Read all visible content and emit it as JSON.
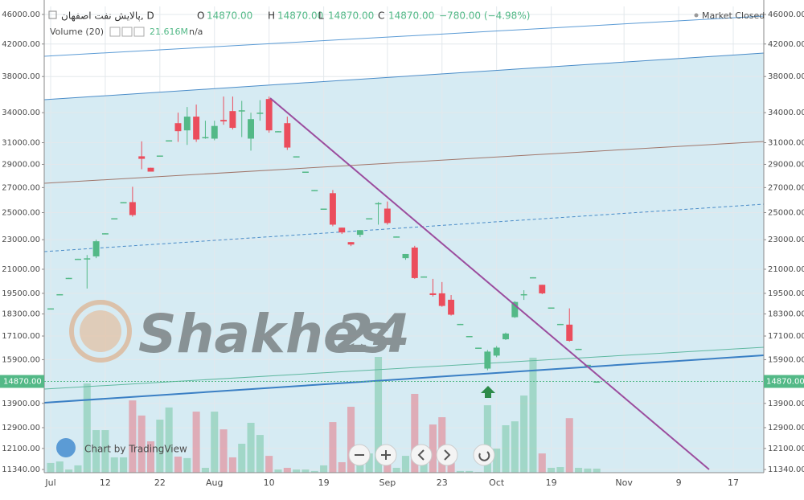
{
  "chart_data": {
    "type": "candlestick",
    "title": "پالایش نفت اصفهان, D",
    "ohlc_legend": [
      {
        "key": "O",
        "value": "14870.00"
      },
      {
        "key": "H",
        "value": "14870.00"
      },
      {
        "key": "L",
        "value": "14870.00"
      },
      {
        "key": "C",
        "value": "14870.00"
      }
    ],
    "change": "−780.00 (−4.98%)",
    "status": "Market Closed",
    "volume_name": "Volume (20)",
    "volume_last_label": "21.616M",
    "volume_na": "n/a",
    "watermark": [
      "Shakhes",
      "24"
    ],
    "credit": "Chart by TradingView",
    "last_price": 14870,
    "last_price_label": "14870.00",
    "log": true,
    "grid": true,
    "up_color": "#53b987",
    "down_color": "#eb4d5c",
    "categories": [
      "Jul",
      null,
      null,
      null,
      null,
      null,
      "12",
      null,
      null,
      null,
      null,
      null,
      "22",
      null,
      null,
      null,
      null,
      null,
      "Aug",
      null,
      null,
      null,
      null,
      null,
      "10",
      null,
      null,
      null,
      null,
      null,
      "19",
      null,
      null,
      null,
      null,
      null,
      null,
      "Sep",
      null,
      null,
      null,
      null,
      null,
      "23",
      null,
      null,
      null,
      null,
      null,
      "Oct",
      null,
      null,
      null,
      null,
      null,
      "19",
      null,
      null,
      null,
      null,
      null,
      null,
      null,
      "Nov",
      null,
      null,
      null,
      null,
      null,
      "9",
      null,
      null,
      null,
      null,
      null,
      "17"
    ],
    "open": [
      18620,
      19450,
      20450,
      21690,
      21720,
      21850,
      23460,
      24570,
      25820,
      25820,
      29730,
      28700,
      29800,
      31230,
      32920,
      32200,
      33590,
      31540,
      31390,
      33250,
      34170,
      34250,
      31390,
      34000,
      35460,
      32120,
      32920,
      29730,
      28360,
      26800,
      25310,
      26540,
      23870,
      22830,
      23350,
      24570,
      25740,
      25310,
      23230,
      21730,
      22450,
      20540,
      19500,
      19500,
      19120,
      17750,
      17100,
      16500,
      15470,
      16100,
      16930,
      18120,
      19450,
      20490,
      20020,
      18670,
      17750,
      17710,
      16440,
      15650,
      14870,
      null,
      null,
      null,
      null,
      null,
      null,
      null,
      null,
      null,
      null,
      null,
      null,
      null,
      null,
      null
    ],
    "high": [
      18620,
      19450,
      20450,
      21690,
      21940,
      23000,
      23460,
      24570,
      25820,
      27070,
      31130,
      28700,
      29800,
      31230,
      34000,
      34600,
      34860,
      33170,
      33170,
      35730,
      35730,
      35260,
      34000,
      35340,
      35730,
      32120,
      33590,
      29730,
      28360,
      26800,
      25310,
      26800,
      23870,
      22830,
      23690,
      24570,
      25820,
      25870,
      23230,
      22010,
      22570,
      20540,
      20390,
      20190,
      19400,
      17750,
      17100,
      16500,
      16380,
      16580,
      17280,
      19040,
      19690,
      20490,
      20020,
      18670,
      17750,
      18620,
      16440,
      15650,
      14870,
      null,
      null,
      null,
      null,
      null,
      null,
      null,
      null,
      null,
      null,
      null,
      null,
      null,
      null,
      null
    ],
    "low": [
      18620,
      19450,
      20450,
      21690,
      19790,
      21730,
      23460,
      24570,
      25820,
      24690,
      28570,
      28360,
      29800,
      31230,
      31080,
      30790,
      31080,
      31380,
      31230,
      32760,
      32290,
      31540,
      30250,
      33170,
      31970,
      32120,
      30320,
      29730,
      28360,
      26800,
      25310,
      23970,
      23410,
      22550,
      23180,
      24570,
      24090,
      24090,
      23230,
      21620,
      20390,
      20540,
      19310,
      18710,
      18210,
      17750,
      17100,
      16500,
      15390,
      16020,
      16890,
      18080,
      19110,
      20490,
      19450,
      18670,
      17750,
      16810,
      16440,
      15650,
      14870,
      null,
      null,
      null,
      null,
      null,
      null,
      null,
      null,
      null,
      null,
      null,
      null,
      null,
      null,
      null
    ],
    "close": [
      18620,
      19450,
      20450,
      21690,
      21720,
      22890,
      23460,
      24570,
      25820,
      24810,
      29500,
      28360,
      29800,
      31230,
      32120,
      33590,
      31310,
      31540,
      32640,
      33100,
      32450,
      34250,
      33330,
      34000,
      32200,
      32120,
      30540,
      29730,
      28360,
      26800,
      25310,
      24090,
      23520,
      22660,
      23690,
      24570,
      25740,
      24210,
      23230,
      22010,
      20440,
      20540,
      19400,
      18760,
      18260,
      17750,
      17100,
      16500,
      16300,
      16500,
      17230,
      18990,
      19450,
      20490,
      19500,
      18670,
      17750,
      16850,
      16440,
      15650,
      14870,
      null,
      null,
      null,
      null,
      null,
      null,
      null,
      null,
      null,
      null,
      null,
      null,
      null,
      null,
      null
    ],
    "volume": [
      52,
      60,
      17,
      39,
      478,
      228,
      228,
      82,
      82,
      387,
      306,
      168,
      284,
      349,
      86,
      78,
      327,
      26,
      327,
      232,
      82,
      155,
      267,
      202,
      90,
      17,
      26,
      17,
      17,
      9,
      39,
      271,
      56,
      353,
      108,
      103,
      620,
      69,
      26,
      90,
      422,
      133,
      258,
      297,
      69,
      9,
      9,
      4,
      361,
      129,
      254,
      275,
      413,
      616,
      103,
      26,
      30,
      292,
      26,
      22,
      21.616,
      null,
      null,
      null,
      null,
      null,
      null,
      null,
      null,
      null,
      null,
      null,
      null,
      null,
      null,
      null
    ],
    "ylim": [
      11230,
      47150
    ],
    "yticks": [
      {
        "value": 11340,
        "label": "11340.00"
      },
      {
        "value": 12100,
        "label": "12100.00"
      },
      {
        "value": 12900,
        "label": "12900.00"
      },
      {
        "value": 13900,
        "label": "13900.00"
      },
      {
        "value": 15900,
        "label": "15900.00"
      },
      {
        "value": 17100,
        "label": "17100.00"
      },
      {
        "value": 18300,
        "label": "18300.00"
      },
      {
        "value": 19500,
        "label": "19500.00"
      },
      {
        "value": 21000,
        "label": "21000.00"
      },
      {
        "value": 23000,
        "label": "23000.00"
      },
      {
        "value": 25000,
        "label": "25000.00"
      },
      {
        "value": 27000,
        "label": "27000.00"
      },
      {
        "value": 29000,
        "label": "29000.00"
      },
      {
        "value": 31000,
        "label": "31000.00"
      },
      {
        "value": 34000,
        "label": "34000.00"
      },
      {
        "value": 38000,
        "label": "38000.00"
      },
      {
        "value": 42000,
        "label": "42000.00"
      },
      {
        "value": 46000,
        "label": "46000.00"
      }
    ]
  }
}
